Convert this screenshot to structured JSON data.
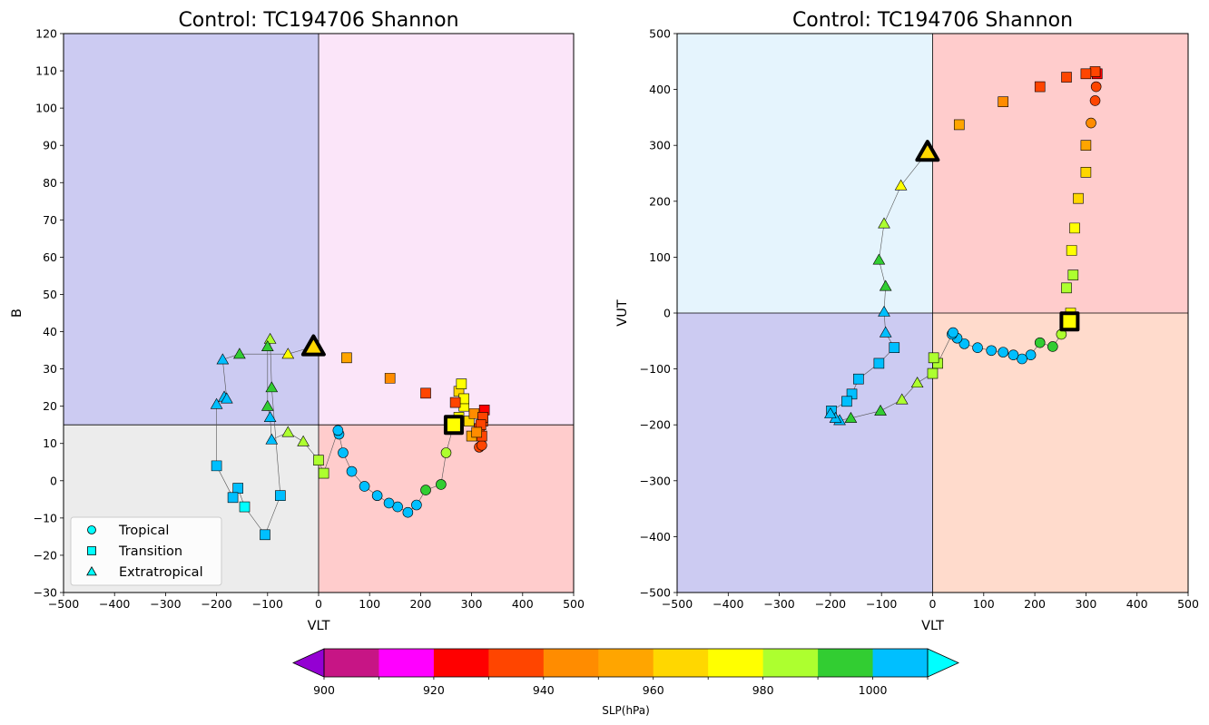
{
  "chart_data": [
    {
      "type": "scatter",
      "title": "Control: TC194706 Shannon",
      "xlabel": "VLT",
      "ylabel": "B",
      "xlim": [
        -500,
        500
      ],
      "ylim": [
        -30,
        120
      ],
      "xticks": [
        -500,
        -400,
        -300,
        -200,
        -100,
        0,
        100,
        200,
        300,
        400,
        500
      ],
      "yticks": [
        -30,
        -20,
        -10,
        0,
        10,
        20,
        30,
        40,
        50,
        60,
        70,
        80,
        90,
        100,
        110,
        120
      ],
      "divider": {
        "x": 0,
        "y": 15
      },
      "quadrant_colors": {
        "upper_left": "#cccbf2",
        "upper_right": "#fbe5f9",
        "lower_left": "#ececec",
        "lower_right": "#ffcccc"
      },
      "legend": {
        "placement": "lower-left",
        "entries": [
          {
            "label": "Tropical",
            "marker": "circle"
          },
          {
            "label": "Transition",
            "marker": "square"
          },
          {
            "label": "Extratropical",
            "marker": "triangle"
          }
        ]
      },
      "start_marker": {
        "x": 265,
        "y": 15,
        "shape": "square",
        "slp": 975
      },
      "end_marker": {
        "x": -10,
        "y": 36,
        "shape": "triangle",
        "slp": 965
      },
      "series": [
        {
          "marker": "circle",
          "points": [
            {
              "x": 250,
              "y": 7.5,
              "slp": 985
            },
            {
              "x": 240,
              "y": -1,
              "slp": 995
            },
            {
              "x": 210,
              "y": -2.5,
              "slp": 995
            },
            {
              "x": 192,
              "y": -6.5,
              "slp": 1005
            },
            {
              "x": 175,
              "y": -8.5,
              "slp": 1005
            },
            {
              "x": 155,
              "y": -7,
              "slp": 1005
            },
            {
              "x": 138,
              "y": -6,
              "slp": 1005
            },
            {
              "x": 115,
              "y": -4,
              "slp": 1005
            },
            {
              "x": 90,
              "y": -1.5,
              "slp": 1005
            },
            {
              "x": 65,
              "y": 2.5,
              "slp": 1005
            },
            {
              "x": 48,
              "y": 7.5,
              "slp": 1005
            },
            {
              "x": 40,
              "y": 12.5,
              "slp": 1005
            },
            {
              "x": 38,
              "y": 13.5,
              "slp": 1005
            },
            {
              "x": 315,
              "y": 9,
              "slp": 935
            },
            {
              "x": 320,
              "y": 9.5,
              "slp": 935
            }
          ]
        },
        {
          "marker": "square",
          "points": [
            {
              "x": 265,
              "y": 15,
              "slp": 975
            },
            {
              "x": 275,
              "y": 17,
              "slp": 975
            },
            {
              "x": 285,
              "y": 20,
              "slp": 975
            },
            {
              "x": 275,
              "y": 24,
              "slp": 965
            },
            {
              "x": 280,
              "y": 26,
              "slp": 975
            },
            {
              "x": 285,
              "y": 22,
              "slp": 975
            },
            {
              "x": 295,
              "y": 16,
              "slp": 965
            },
            {
              "x": 300,
              "y": 12,
              "slp": 955
            },
            {
              "x": 305,
              "y": 18,
              "slp": 945
            },
            {
              "x": 315,
              "y": 14,
              "slp": 935
            },
            {
              "x": 320,
              "y": 12,
              "slp": 935
            },
            {
              "x": 322,
              "y": 16,
              "slp": 935
            },
            {
              "x": 325,
              "y": 19,
              "slp": 925
            },
            {
              "x": 322,
              "y": 17,
              "slp": 935
            },
            {
              "x": 318,
              "y": 15,
              "slp": 935
            },
            {
              "x": 310,
              "y": 13,
              "slp": 945
            },
            {
              "x": 268,
              "y": 21,
              "slp": 935
            },
            {
              "x": 210,
              "y": 23.5,
              "slp": 935
            },
            {
              "x": 140,
              "y": 27.5,
              "slp": 945
            },
            {
              "x": 55,
              "y": 33,
              "slp": 955
            },
            {
              "x": 10,
              "y": 2,
              "slp": 985
            },
            {
              "x": 0,
              "y": 5.5,
              "slp": 985
            },
            {
              "x": -75,
              "y": -4,
              "slp": 1005
            },
            {
              "x": -105,
              "y": -14.5,
              "slp": 1005
            },
            {
              "x": -145,
              "y": -7,
              "slp": 1015
            },
            {
              "x": -158,
              "y": -2,
              "slp": 1005
            },
            {
              "x": -168,
              "y": -4.5,
              "slp": 1005
            },
            {
              "x": -200,
              "y": 4,
              "slp": 1005
            }
          ]
        },
        {
          "marker": "triangle",
          "points": [
            {
              "x": -10,
              "y": 36,
              "slp": 965
            },
            {
              "x": -60,
              "y": 34,
              "slp": 975
            },
            {
              "x": -95,
              "y": 38,
              "slp": 985
            },
            {
              "x": -100,
              "y": 36,
              "slp": 995
            },
            {
              "x": -92,
              "y": 25,
              "slp": 995
            },
            {
              "x": -100,
              "y": 20,
              "slp": 995
            },
            {
              "x": -95,
              "y": 17,
              "slp": 1005
            },
            {
              "x": -92,
              "y": 11,
              "slp": 1005
            },
            {
              "x": -60,
              "y": 13,
              "slp": 985
            },
            {
              "x": -30,
              "y": 10.5,
              "slp": 985
            },
            {
              "x": -155,
              "y": 34,
              "slp": 995
            },
            {
              "x": -188,
              "y": 32.5,
              "slp": 1005
            },
            {
              "x": -185,
              "y": 22.5,
              "slp": 1005
            },
            {
              "x": -180,
              "y": 22,
              "slp": 1005
            },
            {
              "x": -200,
              "y": 20.5,
              "slp": 1005
            }
          ]
        }
      ],
      "track": [
        [
          265,
          15
        ],
        [
          250,
          7.5
        ],
        [
          240,
          -1
        ],
        [
          210,
          -2.5
        ],
        [
          192,
          -6.5
        ],
        [
          175,
          -8.5
        ],
        [
          155,
          -7
        ],
        [
          138,
          -6
        ],
        [
          115,
          -4
        ],
        [
          90,
          -1.5
        ],
        [
          65,
          2.5
        ],
        [
          48,
          7.5
        ],
        [
          40,
          12.5
        ],
        [
          38,
          13.5
        ],
        [
          10,
          2
        ],
        [
          0,
          5.5
        ],
        [
          -30,
          10.5
        ],
        [
          -60,
          13
        ],
        [
          -92,
          11
        ],
        [
          -95,
          17
        ],
        [
          -100,
          20
        ],
        [
          -100,
          36
        ],
        [
          -95,
          38
        ],
        [
          -92,
          25
        ],
        [
          -75,
          -4
        ],
        [
          -105,
          -14.5
        ],
        [
          -145,
          -7
        ],
        [
          -158,
          -2
        ],
        [
          -168,
          -4.5
        ],
        [
          -200,
          4
        ],
        [
          -200,
          20.5
        ],
        [
          -185,
          22.5
        ],
        [
          -180,
          22
        ],
        [
          -188,
          32.5
        ],
        [
          -155,
          34
        ],
        [
          -60,
          34
        ],
        [
          -10,
          36
        ]
      ]
    },
    {
      "type": "scatter",
      "title": "Control: TC194706 Shannon",
      "xlabel": "VLT",
      "ylabel": "VUT",
      "xlim": [
        -500,
        500
      ],
      "ylim": [
        -500,
        500
      ],
      "xticks": [
        -500,
        -400,
        -300,
        -200,
        -100,
        0,
        100,
        200,
        300,
        400,
        500
      ],
      "yticks": [
        -500,
        -400,
        -300,
        -200,
        -100,
        0,
        100,
        200,
        300,
        400,
        500
      ],
      "divider": {
        "x": 0,
        "y": 0
      },
      "quadrant_colors": {
        "upper_left": "#e5f4fd",
        "upper_right": "#ffcccc",
        "lower_left": "#cccbf2",
        "lower_right": "#ffdbcc"
      },
      "start_marker": {
        "x": 268,
        "y": -15,
        "shape": "square",
        "slp": 975
      },
      "end_marker": {
        "x": -10,
        "y": 288,
        "shape": "triangle",
        "slp": 965
      },
      "series": [
        {
          "marker": "circle",
          "points": [
            {
              "x": 252,
              "y": -38,
              "slp": 985
            },
            {
              "x": 235,
              "y": -60,
              "slp": 995
            },
            {
              "x": 210,
              "y": -53,
              "slp": 995
            },
            {
              "x": 192,
              "y": -75,
              "slp": 1005
            },
            {
              "x": 175,
              "y": -82,
              "slp": 1005
            },
            {
              "x": 158,
              "y": -75,
              "slp": 1005
            },
            {
              "x": 138,
              "y": -70,
              "slp": 1005
            },
            {
              "x": 115,
              "y": -67,
              "slp": 1005
            },
            {
              "x": 88,
              "y": -62,
              "slp": 1005
            },
            {
              "x": 62,
              "y": -55,
              "slp": 1005
            },
            {
              "x": 48,
              "y": -45,
              "slp": 1005
            },
            {
              "x": 38,
              "y": -38,
              "slp": 1005
            },
            {
              "x": 40,
              "y": -35,
              "slp": 1005
            },
            {
              "x": 310,
              "y": 340,
              "slp": 945
            },
            {
              "x": 318,
              "y": 380,
              "slp": 935
            },
            {
              "x": 320,
              "y": 405,
              "slp": 935
            }
          ]
        },
        {
          "marker": "square",
          "points": [
            {
              "x": 268,
              "y": -15,
              "slp": 975
            },
            {
              "x": 270,
              "y": 0,
              "slp": 975
            },
            {
              "x": 262,
              "y": 45,
              "slp": 985
            },
            {
              "x": 275,
              "y": 68,
              "slp": 985
            },
            {
              "x": 272,
              "y": 112,
              "slp": 975
            },
            {
              "x": 278,
              "y": 152,
              "slp": 975
            },
            {
              "x": 285,
              "y": 205,
              "slp": 965
            },
            {
              "x": 300,
              "y": 252,
              "slp": 965
            },
            {
              "x": 300,
              "y": 300,
              "slp": 955
            },
            {
              "x": 322,
              "y": 428,
              "slp": 925
            },
            {
              "x": 318,
              "y": 432,
              "slp": 935
            },
            {
              "x": 300,
              "y": 428,
              "slp": 935
            },
            {
              "x": 262,
              "y": 422,
              "slp": 935
            },
            {
              "x": 210,
              "y": 405,
              "slp": 935
            },
            {
              "x": 138,
              "y": 378,
              "slp": 945
            },
            {
              "x": 52,
              "y": 337,
              "slp": 955
            },
            {
              "x": 10,
              "y": -90,
              "slp": 985
            },
            {
              "x": 2,
              "y": -80,
              "slp": 985
            },
            {
              "x": 0,
              "y": -108,
              "slp": 985
            },
            {
              "x": -75,
              "y": -62,
              "slp": 1005
            },
            {
              "x": -105,
              "y": -90,
              "slp": 1005
            },
            {
              "x": -145,
              "y": -118,
              "slp": 1005
            },
            {
              "x": -158,
              "y": -145,
              "slp": 1005
            },
            {
              "x": -168,
              "y": -158,
              "slp": 1005
            },
            {
              "x": -198,
              "y": -175,
              "slp": 1005
            }
          ]
        },
        {
          "marker": "triangle",
          "points": [
            {
              "x": -10,
              "y": 288,
              "slp": 965
            },
            {
              "x": -62,
              "y": 228,
              "slp": 975
            },
            {
              "x": -95,
              "y": 160,
              "slp": 985
            },
            {
              "x": -105,
              "y": 95,
              "slp": 995
            },
            {
              "x": -92,
              "y": 48,
              "slp": 995
            },
            {
              "x": -95,
              "y": 2,
              "slp": 1005
            },
            {
              "x": -92,
              "y": -35,
              "slp": 1005
            },
            {
              "x": -102,
              "y": -175,
              "slp": 995
            },
            {
              "x": -160,
              "y": -188,
              "slp": 995
            },
            {
              "x": -182,
              "y": -192,
              "slp": 1005
            },
            {
              "x": -190,
              "y": -188,
              "slp": 1005
            },
            {
              "x": -200,
              "y": -180,
              "slp": 1005
            },
            {
              "x": -60,
              "y": -155,
              "slp": 985
            },
            {
              "x": -30,
              "y": -125,
              "slp": 985
            }
          ]
        }
      ],
      "track": [
        [
          268,
          -15
        ],
        [
          252,
          -38
        ],
        [
          235,
          -60
        ],
        [
          210,
          -53
        ],
        [
          192,
          -75
        ],
        [
          175,
          -82
        ],
        [
          158,
          -75
        ],
        [
          138,
          -70
        ],
        [
          115,
          -67
        ],
        [
          88,
          -62
        ],
        [
          62,
          -55
        ],
        [
          48,
          -45
        ],
        [
          38,
          -38
        ],
        [
          10,
          -90
        ],
        [
          0,
          -108
        ],
        [
          -30,
          -125
        ],
        [
          -60,
          -155
        ],
        [
          -102,
          -175
        ],
        [
          -160,
          -188
        ],
        [
          -182,
          -192
        ],
        [
          -200,
          -180
        ],
        [
          -198,
          -175
        ],
        [
          -168,
          -158
        ],
        [
          -158,
          -145
        ],
        [
          -145,
          -118
        ],
        [
          -105,
          -90
        ],
        [
          -75,
          -62
        ],
        [
          -92,
          -35
        ],
        [
          -95,
          2
        ],
        [
          -92,
          48
        ],
        [
          -105,
          95
        ],
        [
          -95,
          160
        ],
        [
          -62,
          228
        ],
        [
          -10,
          288
        ]
      ]
    }
  ],
  "colorbar": {
    "label": "SLP(hPa)",
    "ticks": [
      900,
      920,
      940,
      960,
      980,
      1000
    ],
    "bins": [
      900,
      910,
      920,
      930,
      940,
      950,
      960,
      970,
      980,
      990,
      1000,
      1010
    ],
    "colors": [
      "#c71585",
      "#ff00ff",
      "#ff0000",
      "#ff4500",
      "#ff8c00",
      "#ffa500",
      "#ffd700",
      "#ffff00",
      "#adff2f",
      "#32cd32",
      "#00bfff"
    ],
    "under_color": "#9400d3",
    "over_color": "#00ffff"
  }
}
